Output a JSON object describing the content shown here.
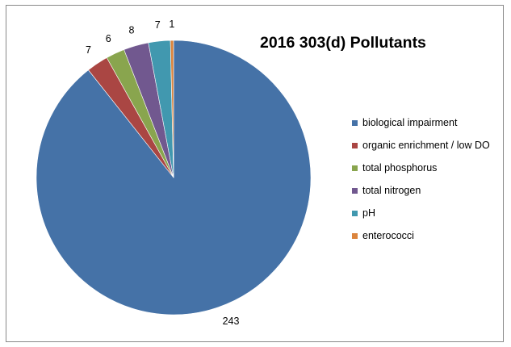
{
  "chart_data": {
    "type": "pie",
    "title": "2016 303(d) Pollutants",
    "categories": [
      "biological impairment",
      "organic enrichment / low DO",
      "total phosphorus",
      "total nitrogen",
      "pH",
      "enterococci"
    ],
    "values": [
      243,
      7,
      6,
      8,
      7,
      1
    ],
    "colors": [
      "#4572A7",
      "#AA4643",
      "#89A54E",
      "#71588F",
      "#4198AF",
      "#DB843D"
    ],
    "legend_position": "right",
    "data_labels": [
      "243",
      "7",
      "6",
      "8",
      "7",
      "1"
    ]
  }
}
